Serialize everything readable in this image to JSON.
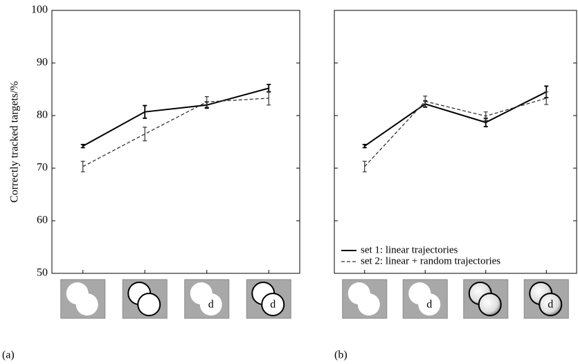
{
  "chart_data": [
    {
      "type": "line",
      "label": "(a)",
      "y_label": "Correctly tracked targets/%",
      "categories": [
        null,
        null,
        null,
        null
      ],
      "ylim": [
        50,
        100
      ],
      "yticks": [
        50,
        60,
        70,
        80,
        90,
        100
      ],
      "show_ytick_labels": true,
      "series": [
        {
          "name": "set 1: linear trajectories",
          "color": "#000000",
          "line_style": "solid",
          "values": [
            74.2,
            80.7,
            82.0,
            85.2
          ],
          "errors": [
            0.3,
            1.2,
            0.6,
            0.7
          ]
        },
        {
          "name": "set 2: linear + random trajectories",
          "color": "#333333",
          "line_style": "dashed",
          "values": [
            70.3,
            76.5,
            82.6,
            83.3
          ],
          "errors": [
            1.0,
            1.3,
            1.0,
            1.3
          ]
        }
      ],
      "legend": false,
      "icons": [
        {
          "style": "plain"
        },
        {
          "style": "outlined"
        },
        {
          "style": "plain",
          "text": "d"
        },
        {
          "style": "outlined",
          "text": "d"
        }
      ]
    },
    {
      "type": "line",
      "label": "(b)",
      "categories": [
        null,
        null,
        null,
        null
      ],
      "ylim": [
        50,
        100
      ],
      "yticks": [
        50,
        60,
        70,
        80,
        90,
        100
      ],
      "show_ytick_labels": false,
      "series": [
        {
          "name": "set 1: linear trajectories",
          "color": "#000000",
          "line_style": "solid",
          "values": [
            74.2,
            82.2,
            78.7,
            84.5
          ],
          "errors": [
            0.3,
            0.6,
            0.8,
            1.1
          ]
        },
        {
          "name": "set 2: linear + random trajectories",
          "color": "#333333",
          "line_style": "dashed",
          "values": [
            70.3,
            82.7,
            79.9,
            83.3
          ],
          "errors": [
            1.0,
            1.0,
            0.8,
            1.2
          ]
        }
      ],
      "legend": "lower left",
      "icons": [
        {
          "style": "plain"
        },
        {
          "style": "plain",
          "text": "d"
        },
        {
          "style": "shaded"
        },
        {
          "style": "shaded",
          "text": "d"
        }
      ]
    }
  ]
}
